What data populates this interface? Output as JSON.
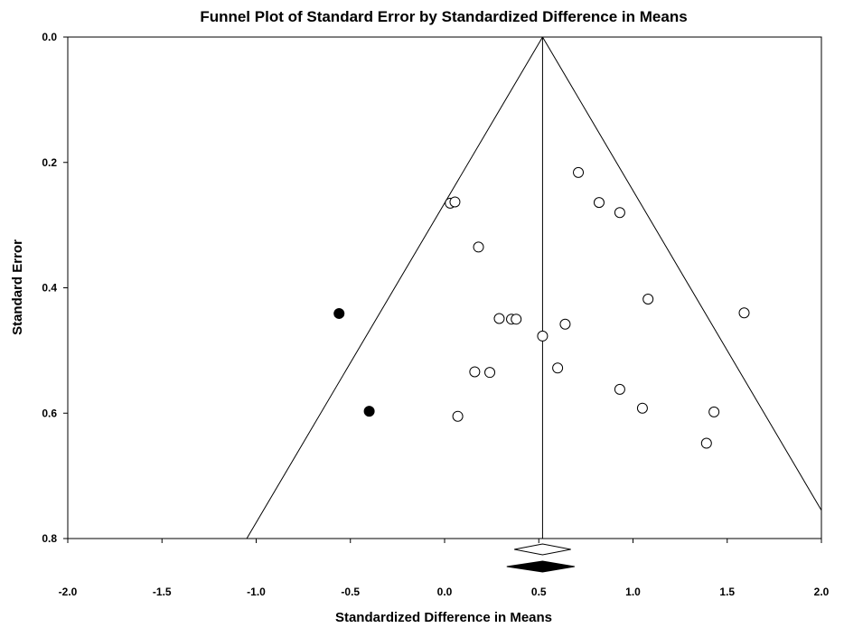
{
  "chart_data": {
    "type": "scatter",
    "title": "Funnel Plot of Standard Error by Standardized Difference in Means",
    "xlabel": "Standardized Difference in Means",
    "ylabel": "Standard Error",
    "xlim": [
      -2.0,
      2.0
    ],
    "ylim": [
      0.0,
      0.8
    ],
    "y_inverted": true,
    "grid": false,
    "x_ticks": [
      -2.0,
      -1.5,
      -1.0,
      -0.5,
      0.0,
      0.5,
      1.0,
      1.5,
      2.0
    ],
    "x_tick_labels": [
      "-2.0",
      "-1.5",
      "-1.0",
      "-0.5",
      "0.0",
      "0.5",
      "1.0",
      "1.5",
      "2.0"
    ],
    "y_ticks": [
      0.0,
      0.2,
      0.4,
      0.6,
      0.8
    ],
    "y_tick_labels": [
      "0.0",
      "0.2",
      "0.4",
      "0.6",
      "0.8"
    ],
    "summary_effect": 0.52,
    "funnel": {
      "apex": [
        0.52,
        0.0
      ],
      "left_base": [
        -1.05,
        0.8
      ],
      "right_edge": [
        2.0,
        0.755
      ]
    },
    "series": [
      {
        "marker": "open-circle",
        "color": "#000000",
        "points": [
          [
            0.71,
            0.216
          ],
          [
            0.03,
            0.265
          ],
          [
            0.055,
            0.263
          ],
          [
            0.82,
            0.264
          ],
          [
            0.93,
            0.28
          ],
          [
            0.18,
            0.335
          ],
          [
            1.08,
            0.418
          ],
          [
            1.59,
            0.44
          ],
          [
            0.29,
            0.449
          ],
          [
            0.355,
            0.45
          ],
          [
            0.38,
            0.45
          ],
          [
            0.64,
            0.458
          ],
          [
            0.52,
            0.477
          ],
          [
            0.6,
            0.528
          ],
          [
            0.16,
            0.534
          ],
          [
            0.24,
            0.535
          ],
          [
            0.93,
            0.562
          ],
          [
            1.05,
            0.592
          ],
          [
            1.43,
            0.598
          ],
          [
            0.07,
            0.605
          ],
          [
            1.39,
            0.648
          ]
        ]
      },
      {
        "marker": "filled-circle",
        "color": "#000000",
        "points": [
          [
            -0.56,
            0.441
          ],
          [
            -0.4,
            0.597
          ]
        ]
      }
    ],
    "summary_diamonds": [
      {
        "center": 0.52,
        "low": 0.37,
        "high": 0.67,
        "style": "open"
      },
      {
        "center": 0.52,
        "low": 0.33,
        "high": 0.69,
        "style": "filled"
      }
    ]
  }
}
